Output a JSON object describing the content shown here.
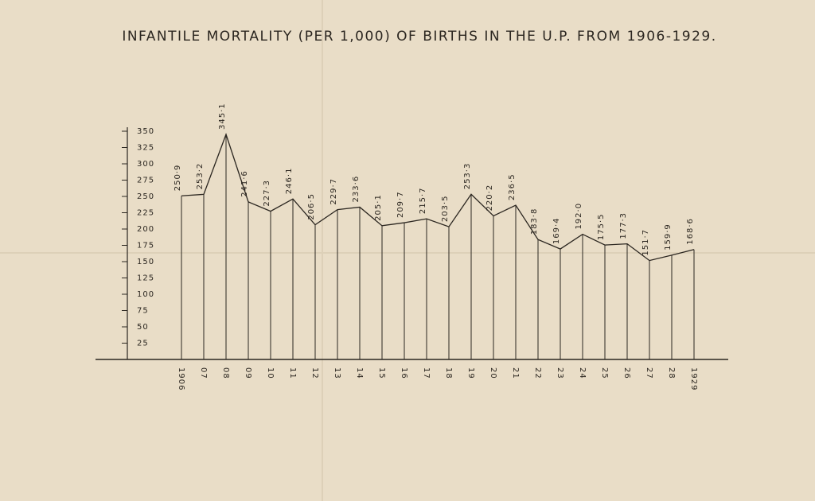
{
  "chart_data": {
    "type": "line",
    "title": "INFANTILE MORTALITY (PER 1,000) OF BIRTHS IN THE U.P. FROM 1906-1929.",
    "categories": [
      "1906",
      "07",
      "08",
      "09",
      "10",
      "11",
      "12",
      "13",
      "14",
      "15",
      "16",
      "17",
      "18",
      "19",
      "20",
      "21",
      "22",
      "23",
      "24",
      "25",
      "26",
      "27",
      "28",
      "1929"
    ],
    "values": [
      250.9,
      253.2,
      345.1,
      241.6,
      227.3,
      246.1,
      206.5,
      229.7,
      233.6,
      205.1,
      209.7,
      215.7,
      203.5,
      253.3,
      220.2,
      236.5,
      183.8,
      169.4,
      192.0,
      175.5,
      177.3,
      151.7,
      159.9,
      168.6
    ],
    "value_labels": [
      "250·9",
      "253·2",
      "345·1",
      "241·6",
      "227·3",
      "246·1",
      "206·5",
      "229·7",
      "233·6",
      "205·1",
      "209·7",
      "215·7",
      "203·5",
      "253·3",
      "220·2",
      "236·5",
      "183·8",
      "169·4",
      "192·0",
      "175·5",
      "177·3",
      "151·7",
      "159·9",
      "168·6"
    ],
    "color": "#2b2620",
    "ylim": [
      0,
      350
    ],
    "yticks": [
      25,
      50,
      75,
      100,
      125,
      150,
      175,
      200,
      225,
      250,
      275,
      300,
      325,
      350
    ],
    "drop_lines": true
  }
}
